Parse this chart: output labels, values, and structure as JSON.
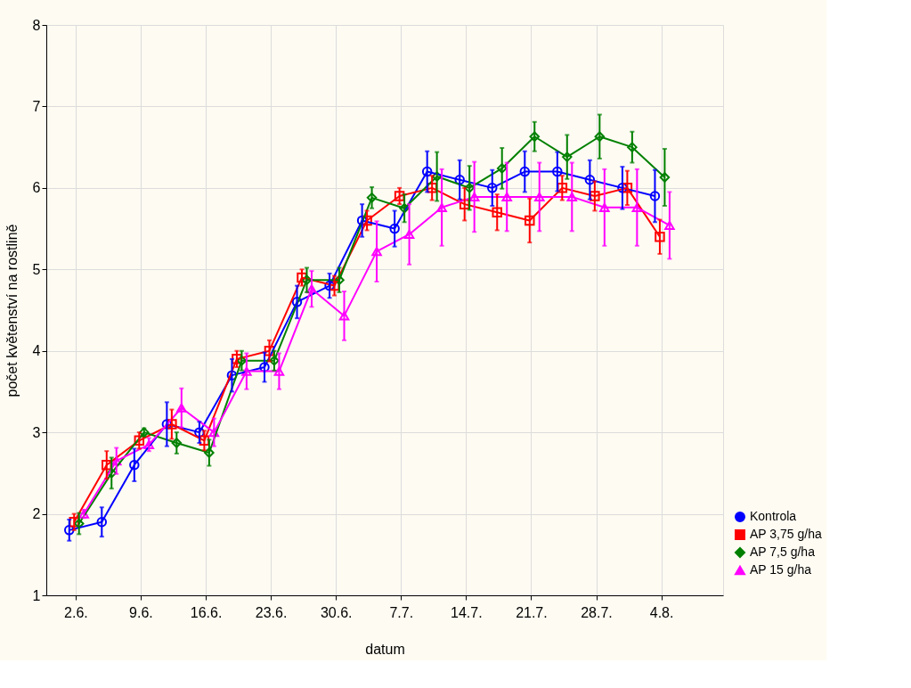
{
  "chart_data": {
    "type": "line",
    "xlabel": "datum",
    "ylabel": "počet květenství na rostlině",
    "categories": [
      "2.6.",
      null,
      "9.6.",
      null,
      "16.6.",
      null,
      "23.6.",
      null,
      "30.6.",
      null,
      "7.7.",
      null,
      "14.7.",
      null,
      "21.7.",
      null,
      "28.7.",
      null,
      "4.8."
    ],
    "ylim": [
      1,
      8
    ],
    "yticks": [
      1,
      2,
      3,
      4,
      5,
      6,
      7,
      8
    ],
    "grid": true,
    "legend": "bottom right",
    "line_style": "solid",
    "series": [
      {
        "name": "Kontrola",
        "color": "#0000ff",
        "marker": "circle",
        "values": [
          1.8,
          1.9,
          2.6,
          3.1,
          3.0,
          3.7,
          3.8,
          4.6,
          4.8,
          5.6,
          5.5,
          6.2,
          6.1,
          6.0,
          6.2,
          6.2,
          6.1,
          6.0,
          5.9
        ],
        "errors": [
          0.13,
          0.18,
          0.2,
          0.27,
          0.13,
          0.2,
          0.18,
          0.2,
          0.15,
          0.2,
          0.22,
          0.25,
          0.24,
          0.22,
          0.25,
          0.24,
          0.24,
          0.26,
          0.32
        ]
      },
      {
        "name": "AP 3,75 g/ha",
        "color": "#ff0000",
        "marker": "square",
        "values": [
          1.9,
          2.6,
          2.9,
          3.1,
          2.9,
          3.9,
          4.0,
          4.9,
          4.8,
          5.6,
          5.9,
          6.0,
          5.8,
          5.7,
          5.6,
          6.0,
          5.9,
          6.0,
          5.4
        ],
        "errors": [
          0.1,
          0.17,
          0.1,
          0.18,
          0.12,
          0.1,
          0.13,
          0.1,
          0.12,
          0.12,
          0.1,
          0.15,
          0.2,
          0.22,
          0.27,
          0.15,
          0.18,
          0.21,
          0.21
        ]
      },
      {
        "name": "AP 7,5 g/ha",
        "color": "#008000",
        "marker": "diamond",
        "values": [
          1.88,
          2.5,
          3.0,
          2.87,
          2.75,
          3.88,
          3.88,
          4.87,
          4.87,
          5.88,
          5.75,
          6.14,
          6.0,
          6.24,
          6.63,
          6.38,
          6.63,
          6.5,
          6.13
        ],
        "errors": [
          0.13,
          0.19,
          0.05,
          0.13,
          0.16,
          0.12,
          0.12,
          0.15,
          0.15,
          0.13,
          0.17,
          0.3,
          0.27,
          0.25,
          0.18,
          0.27,
          0.27,
          0.19,
          0.35
        ]
      },
      {
        "name": "AP 15 g/ha",
        "color": "#ff00ff",
        "marker": "triangle",
        "values": [
          2.0,
          2.65,
          2.85,
          3.3,
          3.0,
          3.75,
          3.75,
          4.76,
          4.43,
          5.22,
          5.43,
          5.76,
          5.89,
          5.89,
          5.89,
          5.89,
          5.76,
          5.76,
          5.54
        ],
        "errors": [
          0.05,
          0.16,
          0.08,
          0.24,
          0.17,
          0.22,
          0.22,
          0.22,
          0.3,
          0.37,
          0.37,
          0.47,
          0.43,
          0.42,
          0.42,
          0.42,
          0.47,
          0.47,
          0.41
        ]
      }
    ]
  }
}
